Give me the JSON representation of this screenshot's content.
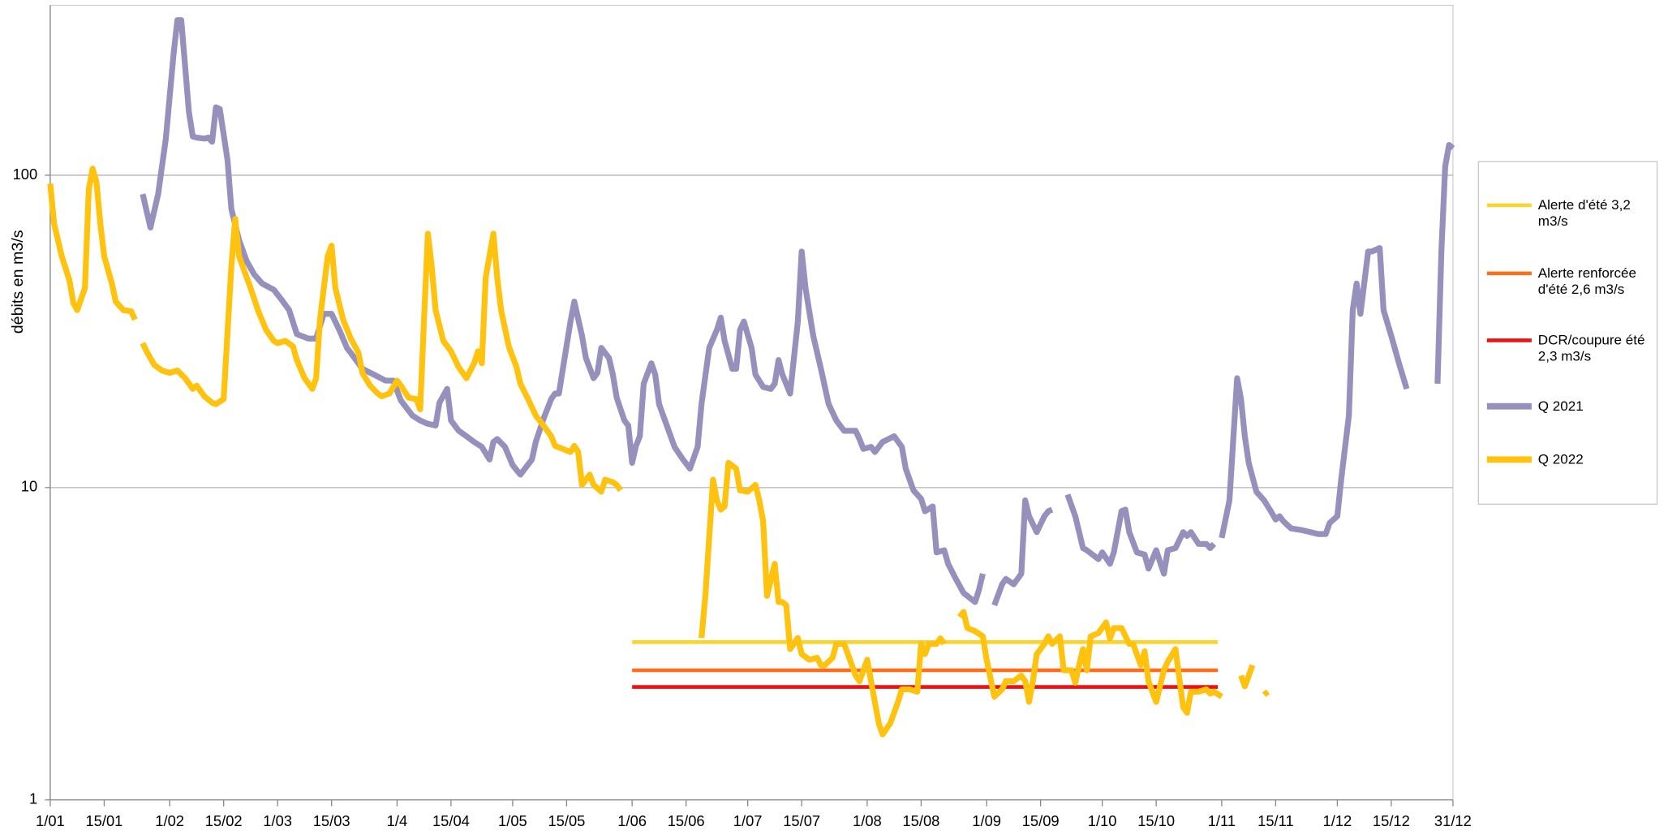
{
  "chart_data": {
    "type": "line",
    "y_label": "débits en m3/s",
    "ylog": true,
    "ylim": [
      1,
      350
    ],
    "yticks": [
      1,
      10,
      100
    ],
    "grid": true,
    "xlim": [
      0,
      364
    ],
    "xticks": [
      {
        "value": 0,
        "label": "1/01"
      },
      {
        "value": 14,
        "label": "15/01"
      },
      {
        "value": 31,
        "label": "1/02"
      },
      {
        "value": 45,
        "label": "15/02"
      },
      {
        "value": 59,
        "label": "1/03"
      },
      {
        "value": 73,
        "label": "15/03"
      },
      {
        "value": 90,
        "label": "1/4"
      },
      {
        "value": 104,
        "label": "15/04"
      },
      {
        "value": 120,
        "label": "1/05"
      },
      {
        "value": 134,
        "label": "15/05"
      },
      {
        "value": 151,
        "label": "1/06"
      },
      {
        "value": 165,
        "label": "15/06"
      },
      {
        "value": 181,
        "label": "1/07"
      },
      {
        "value": 195,
        "label": "15/07"
      },
      {
        "value": 212,
        "label": "1/08"
      },
      {
        "value": 226,
        "label": "15/08"
      },
      {
        "value": 243,
        "label": "1/09"
      },
      {
        "value": 257,
        "label": "15/09"
      },
      {
        "value": 273,
        "label": "1/10"
      },
      {
        "value": 287,
        "label": "15/10"
      },
      {
        "value": 304,
        "label": "1/11"
      },
      {
        "value": 318,
        "label": "15/11"
      },
      {
        "value": 334,
        "label": "1/12"
      },
      {
        "value": 348,
        "label": "15/12"
      },
      {
        "value": 364,
        "label": "31/12"
      }
    ],
    "legend": "right",
    "series": [
      {
        "name": "Alerte d'été 3,2 m3/s",
        "color": "#f9d42c",
        "x": [
          151,
          303
        ],
        "values": [
          3.2,
          3.2
        ]
      },
      {
        "name": "Alerte renforcée d'été 2,6 m3/s",
        "color": "#ff6d1a",
        "x": [
          151,
          303
        ],
        "values": [
          2.6,
          2.6
        ]
      },
      {
        "name": "DCR/coupure été 2,3 m3/s",
        "color": "#ee1111",
        "x": [
          151,
          303
        ],
        "values": [
          2.3,
          2.3
        ]
      },
      {
        "name": "Q 2021",
        "color": "#9690bd",
        "x": [
          24,
          26,
          28,
          30,
          32,
          33,
          34,
          36,
          37,
          38,
          40,
          41,
          42,
          43,
          44,
          46,
          47,
          49,
          51,
          53,
          55,
          58,
          60,
          62,
          64,
          67,
          69,
          71,
          73,
          75,
          77,
          78,
          81,
          84,
          87,
          89,
          91,
          94,
          96,
          98,
          100,
          101,
          103,
          104,
          106,
          108,
          110,
          112,
          114,
          115,
          116,
          118,
          120,
          122,
          125,
          126,
          128,
          130,
          131,
          132,
          135,
          136,
          138,
          139,
          141,
          142,
          143,
          145,
          146,
          147,
          149,
          150,
          151,
          152,
          153,
          154,
          156,
          157,
          158,
          160,
          162,
          164,
          166,
          168,
          169,
          171,
          173,
          174,
          175,
          177,
          178,
          179,
          180,
          182,
          183,
          185,
          187,
          188,
          189,
          190,
          192,
          194,
          195,
          196,
          198,
          200,
          202,
          204,
          206,
          209,
          210,
          211,
          213,
          214,
          216,
          219,
          221,
          222,
          224,
          226,
          227,
          229,
          230,
          232,
          233,
          235,
          237,
          240,
          241,
          242,
          244,
          245,
          247,
          248,
          250,
          252,
          253,
          254,
          256,
          258,
          259,
          260,
          262,
          264,
          266,
          268,
          269,
          272,
          273,
          275,
          276,
          278,
          279,
          280,
          282,
          284,
          285,
          287,
          289,
          290,
          292,
          294,
          295,
          296,
          298,
          300,
          301,
          302,
          303,
          304,
          306,
          308,
          309,
          310,
          311,
          313,
          315,
          317,
          318,
          319,
          320,
          322,
          325,
          327,
          329,
          331,
          332,
          334,
          335,
          337,
          338,
          339,
          340,
          342,
          343,
          345,
          346,
          348,
          350,
          352,
          356,
          360,
          361,
          362,
          363,
          364
        ],
        "values": [
          87,
          68,
          87,
          131,
          244,
          314,
          314,
          159,
          133,
          132,
          131,
          132,
          128,
          165,
          163,
          112,
          78,
          62,
          53,
          48,
          45,
          43,
          40,
          37,
          31,
          30,
          30,
          36,
          36,
          32,
          28,
          27,
          24,
          23,
          22,
          22,
          19,
          17,
          16.4,
          16,
          15.8,
          18.7,
          20.7,
          16.4,
          15.2,
          14.6,
          14,
          13.5,
          12.3,
          14,
          14.3,
          13.5,
          11.8,
          11,
          12.3,
          14,
          16.6,
          19.2,
          20,
          20,
          34,
          39.4,
          30.6,
          26,
          22.4,
          23.3,
          28,
          26,
          23,
          19.4,
          16.4,
          15.8,
          12,
          13.6,
          14.6,
          21.5,
          25,
          23,
          18.5,
          15.8,
          13.5,
          12.4,
          11.5,
          13.5,
          18.5,
          28,
          32,
          35,
          29.5,
          24,
          24,
          32,
          34,
          28,
          23,
          21,
          20.7,
          21.5,
          25.6,
          23,
          20,
          34,
          57,
          43.5,
          30.6,
          24,
          18.5,
          16.4,
          15.2,
          15.2,
          14.3,
          13.3,
          13.5,
          13,
          14,
          14.6,
          13.5,
          11.5,
          9.8,
          9.2,
          8.4,
          8.7,
          6.2,
          6.3,
          5.7,
          5.1,
          4.6,
          4.3,
          4.7,
          5.3,
          null,
          4.2,
          4.9,
          5.1,
          4.9,
          5.3,
          9.1,
          8.1,
          7.2,
          8.1,
          8.4,
          8.5,
          null,
          9.5,
          8.1,
          6.4,
          6.3,
          5.9,
          6.2,
          5.7,
          6.2,
          8.4,
          8.5,
          7.2,
          6.2,
          6.1,
          5.5,
          6.3,
          5.3,
          6.3,
          6.4,
          7.2,
          7,
          7.2,
          6.6,
          6.6,
          6.4,
          6.6,
          null,
          6.9,
          9.1,
          22.4,
          19.2,
          14.6,
          12,
          9.7,
          9.1,
          8.3,
          7.9,
          8.1,
          7.8,
          7.4,
          7.3,
          7.2,
          7.1,
          7.1,
          7.7,
          8.1,
          10.6,
          17,
          37,
          45,
          36,
          57,
          57,
          58.5,
          37,
          30.6,
          25,
          20.7,
          null,
          21.5,
          57,
          107,
          125,
          122
        ]
      },
      {
        "name": "Q 2022",
        "color": "#ffc20e",
        "x": [
          0,
          1,
          3,
          5,
          6,
          7,
          9,
          10,
          11,
          12,
          13,
          14,
          16,
          17,
          19,
          21,
          22,
          23,
          24,
          25,
          27,
          29,
          31,
          33,
          35,
          37,
          38,
          40,
          42,
          43,
          45,
          47,
          48,
          49,
          51,
          52,
          54,
          56,
          58,
          59,
          61,
          63,
          64,
          66,
          68,
          69,
          70,
          72,
          73,
          74,
          76,
          78,
          80,
          81,
          83,
          85,
          86,
          88,
          90,
          91,
          93,
          95,
          96,
          97,
          98,
          99,
          100,
          102,
          104,
          106,
          108,
          110,
          111,
          112,
          113,
          115,
          116,
          117,
          119,
          121,
          122,
          124,
          126,
          128,
          130,
          131,
          133,
          135,
          136,
          137,
          138,
          140,
          141,
          143,
          144,
          146,
          147,
          148,
          150,
          169,
          170,
          172,
          173,
          174,
          175,
          176,
          178,
          179,
          181,
          183,
          184,
          185,
          186,
          188,
          189,
          190,
          191,
          192,
          194,
          195,
          197,
          199,
          200,
          201,
          203,
          204,
          206,
          207,
          209,
          210,
          212,
          213,
          215,
          216,
          218,
          220,
          221,
          223,
          225,
          226,
          227,
          228,
          230,
          231,
          232,
          234,
          236,
          237,
          238,
          240,
          242,
          243,
          245,
          247,
          248,
          250,
          252,
          253,
          254,
          255,
          256,
          258,
          259,
          260,
          262,
          263,
          265,
          266,
          267,
          268,
          269,
          270,
          272,
          274,
          275,
          276,
          278,
          280,
          281,
          283,
          284,
          285,
          287,
          289,
          290,
          292,
          294,
          295,
          296,
          298,
          300,
          301,
          302,
          304,
          306,
          309,
          310,
          312,
          313,
          315,
          316
        ],
        "values": [
          94,
          70,
          55,
          46,
          39,
          37,
          43.5,
          90,
          105,
          95,
          70,
          55,
          45,
          39.4,
          37,
          36.7,
          34.5,
          null,
          29,
          27.3,
          24.7,
          23.7,
          23.3,
          23.7,
          22.4,
          20.7,
          21.2,
          19.6,
          18.7,
          18.5,
          19.2,
          51,
          72.5,
          55,
          47,
          43.5,
          36.7,
          32,
          29.5,
          29,
          29.5,
          28.3,
          25.6,
          22.4,
          20.7,
          22.4,
          34.5,
          55,
          59.5,
          43.5,
          34.5,
          30,
          27,
          23.3,
          21.2,
          20,
          19.6,
          20,
          22,
          21.2,
          19.4,
          19.2,
          17.8,
          34.5,
          65,
          51,
          37,
          29.5,
          27.3,
          24.3,
          22.4,
          25,
          27.3,
          25,
          47,
          65,
          47,
          37,
          28.3,
          24.3,
          21.5,
          19.2,
          17,
          15.8,
          14.6,
          13.6,
          13.3,
          13,
          13.6,
          13,
          10.2,
          11,
          10.2,
          9.7,
          10.6,
          10.4,
          10.2,
          9.8,
          null,
          3.3,
          4.5,
          10.6,
          9.1,
          8.5,
          8.7,
          12,
          11.5,
          9.8,
          9.7,
          10.2,
          9.1,
          7.8,
          4.5,
          5.7,
          4.3,
          4.3,
          4.2,
          3.04,
          3.3,
          2.93,
          2.81,
          2.85,
          2.7,
          2.7,
          2.85,
          3.16,
          3.16,
          2.93,
          2.5,
          2.4,
          2.81,
          2.4,
          1.76,
          1.62,
          1.76,
          2.06,
          2.26,
          2.26,
          2.22,
          3.16,
          2.93,
          3.16,
          3.16,
          3.29,
          3.16,
          null,
          3.85,
          4,
          3.55,
          3.47,
          3.34,
          2.81,
          2.14,
          2.26,
          2.4,
          2.4,
          2.5,
          2.4,
          2.06,
          2.4,
          2.93,
          3.16,
          3.34,
          3.16,
          3.34,
          2.6,
          2.6,
          2.37,
          2.7,
          3.04,
          2.6,
          3.34,
          3.42,
          3.7,
          3.29,
          3.55,
          3.55,
          3.16,
          3.16,
          2.7,
          2.99,
          2.4,
          2.06,
          2.6,
          2.77,
          3.04,
          1.98,
          1.9,
          2.22,
          2.22,
          2.26,
          2.19,
          2.22,
          2.14,
          null,
          2.5,
          2.31,
          2.7,
          null,
          2.17,
          2.22
        ]
      }
    ]
  }
}
